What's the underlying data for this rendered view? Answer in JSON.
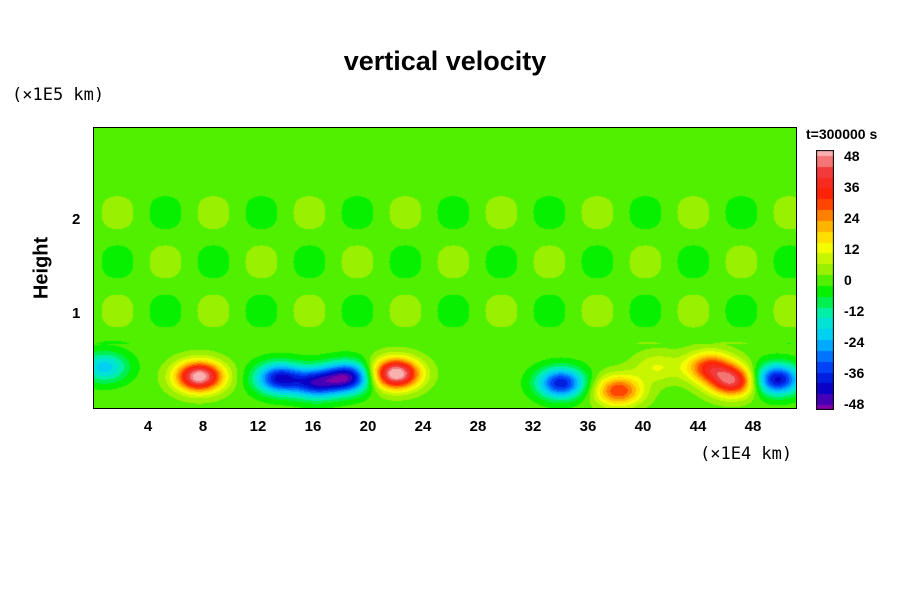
{
  "chart_data": {
    "type": "heatmap",
    "title": "vertical velocity",
    "ylabel": "Height",
    "y_unit": "(×1E5 km)",
    "x_unit": "(×1E4 km)",
    "time_label": "t=300000 s",
    "xlim": [
      0,
      51.2
    ],
    "ylim": [
      0,
      3.0
    ],
    "x_ticks": [
      "4",
      "8",
      "12",
      "16",
      "20",
      "24",
      "28",
      "32",
      "36",
      "40",
      "44",
      "48"
    ],
    "y_ticks": [
      "1",
      "2"
    ],
    "colorbar_ticks": [
      "48",
      "36",
      "24",
      "12",
      "0",
      "-12",
      "-24",
      "-36",
      "-48"
    ],
    "colorbar_range": [
      -48,
      48
    ],
    "features": [
      {
        "x": 7.7,
        "y": 0.35,
        "peak": 50
      },
      {
        "x": 13.5,
        "y": 0.33,
        "peak": -38
      },
      {
        "x": 16.2,
        "y": 0.28,
        "peak": -35
      },
      {
        "x": 18.5,
        "y": 0.34,
        "peak": -42
      },
      {
        "x": 22.0,
        "y": 0.38,
        "peak": 52
      },
      {
        "x": 34.0,
        "y": 0.28,
        "peak": -37
      },
      {
        "x": 38.2,
        "y": 0.2,
        "peak": 30
      },
      {
        "x": 41.0,
        "y": 0.45,
        "peak": 10
      },
      {
        "x": 44.8,
        "y": 0.45,
        "peak": 30
      },
      {
        "x": 46.5,
        "y": 0.3,
        "peak": 40
      },
      {
        "x": 49.7,
        "y": 0.32,
        "peak": -40
      },
      {
        "x": 0.8,
        "y": 0.45,
        "peak": -20
      }
    ]
  },
  "colors": {
    "background_field": "#00f000",
    "colormap": [
      "#7f00a8",
      "#0000c8",
      "#0050ff",
      "#00c8ff",
      "#00f0c0",
      "#00f000",
      "#a0f000",
      "#ffff00",
      "#ffa000",
      "#ff2000",
      "#f03030",
      "#f8b0b0"
    ]
  }
}
